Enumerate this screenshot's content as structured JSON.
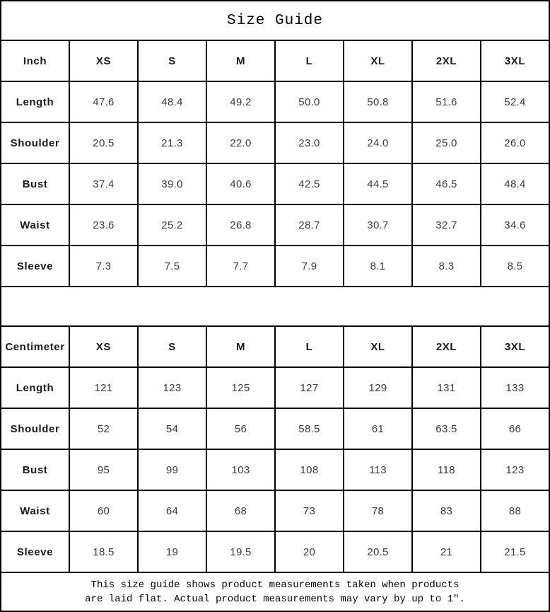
{
  "title": "Size Guide",
  "size_columns": [
    "XS",
    "S",
    "M",
    "L",
    "XL",
    "2XL",
    "3XL"
  ],
  "tables": [
    {
      "unit_label": "Inch",
      "rows": [
        {
          "label": "Length",
          "values": [
            "47.6",
            "48.4",
            "49.2",
            "50.0",
            "50.8",
            "51.6",
            "52.4"
          ]
        },
        {
          "label": "Shoulder",
          "values": [
            "20.5",
            "21.3",
            "22.0",
            "23.0",
            "24.0",
            "25.0",
            "26.0"
          ]
        },
        {
          "label": "Bust",
          "values": [
            "37.4",
            "39.0",
            "40.6",
            "42.5",
            "44.5",
            "46.5",
            "48.4"
          ]
        },
        {
          "label": "Waist",
          "values": [
            "23.6",
            "25.2",
            "26.8",
            "28.7",
            "30.7",
            "32.7",
            "34.6"
          ]
        },
        {
          "label": "Sleeve",
          "values": [
            "7.3",
            "7.5",
            "7.7",
            "7.9",
            "8.1",
            "8.3",
            "8.5"
          ]
        }
      ]
    },
    {
      "unit_label": "Centimeter",
      "rows": [
        {
          "label": "Length",
          "values": [
            "121",
            "123",
            "125",
            "127",
            "129",
            "131",
            "133"
          ]
        },
        {
          "label": "Shoulder",
          "values": [
            "52",
            "54",
            "56",
            "58.5",
            "61",
            "63.5",
            "66"
          ]
        },
        {
          "label": "Bust",
          "values": [
            "95",
            "99",
            "103",
            "108",
            "113",
            "118",
            "123"
          ]
        },
        {
          "label": "Waist",
          "values": [
            "60",
            "64",
            "68",
            "73",
            "78",
            "83",
            "88"
          ]
        },
        {
          "label": "Sleeve",
          "values": [
            "18.5",
            "19",
            "19.5",
            "20",
            "20.5",
            "21",
            "21.5"
          ]
        }
      ]
    }
  ],
  "footer": "This size guide shows product measurements taken when products\nare laid flat. Actual product measurements may vary by up to 1″.",
  "colors": {
    "border": "#000000",
    "heading_text": "#1a1a1a",
    "value_text": "#3a3a3a",
    "background": "#ffffff"
  }
}
